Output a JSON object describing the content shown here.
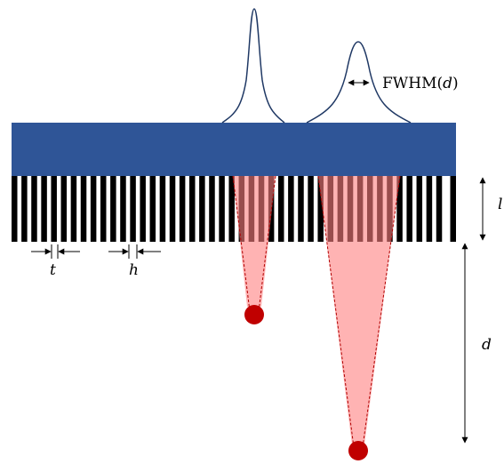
{
  "labels": {
    "fwhm": [
      "FWHM(",
      "d",
      ")"
    ],
    "l": "l",
    "t": "t",
    "h": "h",
    "d": "d"
  }
}
